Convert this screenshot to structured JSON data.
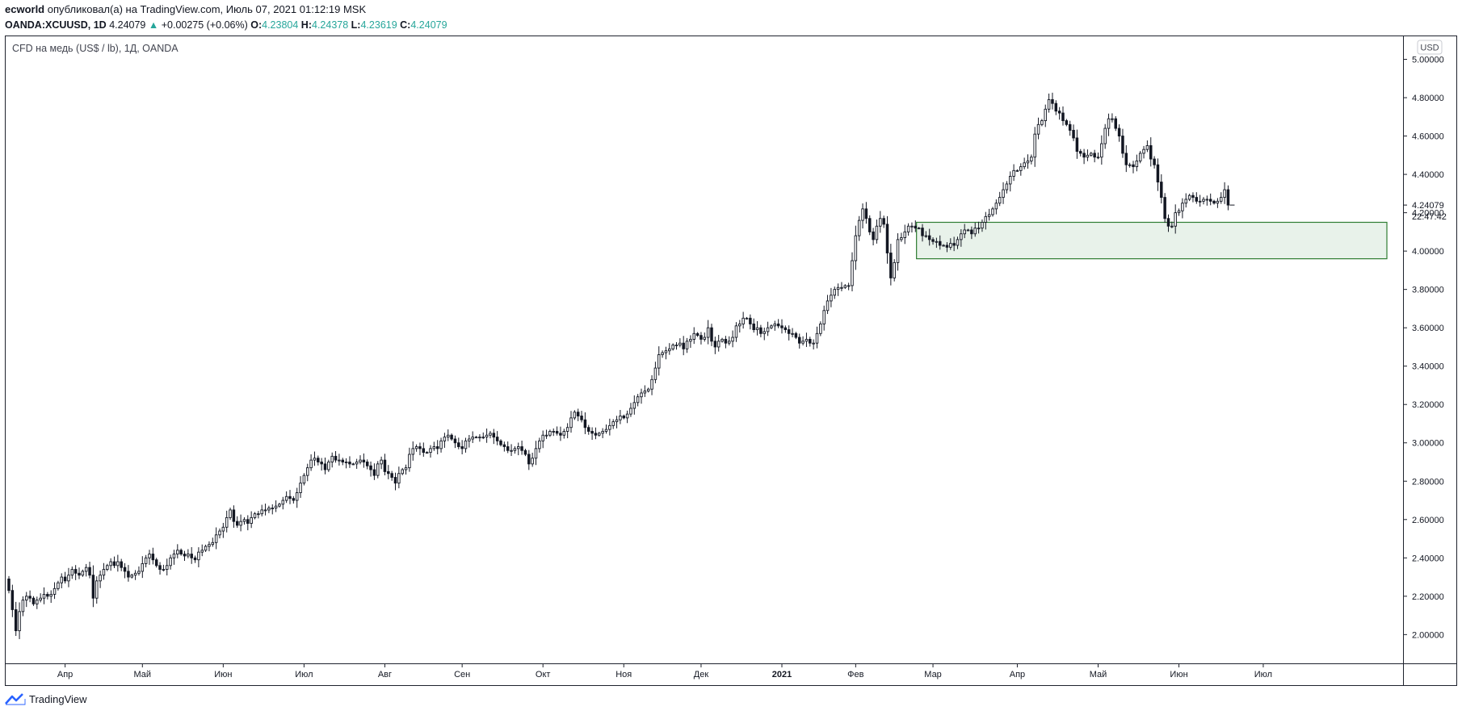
{
  "header": {
    "author": "ecworld",
    "published_text": "опубликовал(а) на TradingView.com, Июль 07, 2021 01:12:19 MSK",
    "symbol": "OANDA:XCUUSD, 1D",
    "last": "4.24079",
    "change_arrow": "▲",
    "change": "+0.00275 (+0.06%)",
    "o_label": "O:",
    "o_value": "4.23804",
    "h_label": "H:",
    "h_value": "4.24378",
    "l_label": "L:",
    "l_value": "4.23619",
    "c_label": "C:",
    "c_value": "4.24079"
  },
  "chart_title": "CFD на медь (US$ / lb), 1Д, OANDA",
  "currency_badge": "USD",
  "countdown": "22:47:42",
  "footer": {
    "brand": "TradingView",
    "logo_icon": "tradingview-logo-icon"
  },
  "colors": {
    "up_change": "#26a69a",
    "candle": "#131722",
    "box_fill": "#e8f2ea",
    "box_stroke": "#2e7d32"
  },
  "chart_data": {
    "type": "candlestick",
    "title": "CFD на медь (US$ / lb), 1Д, OANDA",
    "ylim": [
      1.85,
      5.12
    ],
    "y_ticks": [
      "2.00000",
      "2.20000",
      "2.40000",
      "2.60000",
      "2.80000",
      "3.00000",
      "3.20000",
      "3.40000",
      "3.60000",
      "3.80000",
      "4.00000",
      "4.20000",
      "4.40000",
      "4.60000",
      "4.80000",
      "5.00000"
    ],
    "x_labels": [
      "Апр",
      "Май",
      "Июн",
      "Июл",
      "Авг",
      "Сен",
      "Окт",
      "Ноя",
      "Дек",
      "2021",
      "Фев",
      "Мар",
      "Апр",
      "Май",
      "Июн",
      "Июл"
    ],
    "x_label_bar_index": [
      16,
      38,
      61,
      84,
      107,
      129,
      152,
      175,
      197,
      220,
      241,
      263,
      287,
      310,
      333,
      357
    ],
    "price_label": "4.24079",
    "zone": {
      "low": 3.96,
      "high": 4.15,
      "from_bar": 259,
      "label": ""
    },
    "closes": [
      2.23,
      2.13,
      2.02,
      2.12,
      2.18,
      2.2,
      2.19,
      2.16,
      2.18,
      2.19,
      2.21,
      2.2,
      2.21,
      2.24,
      2.27,
      2.3,
      2.28,
      2.31,
      2.34,
      2.32,
      2.31,
      2.33,
      2.35,
      2.31,
      2.19,
      2.28,
      2.31,
      2.34,
      2.36,
      2.38,
      2.36,
      2.38,
      2.35,
      2.33,
      2.3,
      2.31,
      2.32,
      2.33,
      2.37,
      2.4,
      2.42,
      2.39,
      2.36,
      2.34,
      2.34,
      2.36,
      2.4,
      2.42,
      2.44,
      2.42,
      2.41,
      2.42,
      2.4,
      2.39,
      2.43,
      2.44,
      2.46,
      2.47,
      2.48,
      2.52,
      2.54,
      2.56,
      2.61,
      2.65,
      2.59,
      2.57,
      2.59,
      2.6,
      2.58,
      2.61,
      2.63,
      2.63,
      2.65,
      2.65,
      2.66,
      2.66,
      2.67,
      2.68,
      2.7,
      2.72,
      2.71,
      2.7,
      2.74,
      2.79,
      2.83,
      2.87,
      2.91,
      2.92,
      2.9,
      2.89,
      2.86,
      2.9,
      2.93,
      2.91,
      2.91,
      2.9,
      2.9,
      2.89,
      2.89,
      2.9,
      2.91,
      2.9,
      2.88,
      2.86,
      2.83,
      2.89,
      2.91,
      2.85,
      2.84,
      2.82,
      2.79,
      2.84,
      2.86,
      2.87,
      2.94,
      2.97,
      2.98,
      2.97,
      2.95,
      2.95,
      2.97,
      2.98,
      2.97,
      3.01,
      3.03,
      3.04,
      3.02,
      3.0,
      2.98,
      2.97,
      3.01,
      3.02,
      3.03,
      3.03,
      3.03,
      3.03,
      3.04,
      3.05,
      3.03,
      3.01,
      2.99,
      2.98,
      2.96,
      2.96,
      2.97,
      2.98,
      2.96,
      2.94,
      2.89,
      2.92,
      2.97,
      3.01,
      3.04,
      3.04,
      3.06,
      3.06,
      3.05,
      3.04,
      3.06,
      3.08,
      3.13,
      3.16,
      3.14,
      3.12,
      3.08,
      3.06,
      3.05,
      3.04,
      3.05,
      3.06,
      3.07,
      3.09,
      3.11,
      3.12,
      3.14,
      3.13,
      3.15,
      3.18,
      3.21,
      3.24,
      3.26,
      3.27,
      3.28,
      3.33,
      3.39,
      3.46,
      3.47,
      3.48,
      3.49,
      3.51,
      3.51,
      3.52,
      3.49,
      3.53,
      3.54,
      3.57,
      3.56,
      3.54,
      3.55,
      3.6,
      3.53,
      3.5,
      3.53,
      3.54,
      3.52,
      3.53,
      3.55,
      3.61,
      3.62,
      3.65,
      3.65,
      3.62,
      3.59,
      3.6,
      3.57,
      3.58,
      3.6,
      3.61,
      3.62,
      3.61,
      3.6,
      3.59,
      3.57,
      3.57,
      3.55,
      3.52,
      3.53,
      3.54,
      3.52,
      3.52,
      3.57,
      3.62,
      3.69,
      3.74,
      3.77,
      3.8,
      3.81,
      3.81,
      3.82,
      3.82,
      3.95,
      4.08,
      4.16,
      4.22,
      4.17,
      4.1,
      4.06,
      4.13,
      4.17,
      4.14,
      3.99,
      3.86,
      3.94,
      4.06,
      4.07,
      4.1,
      4.13,
      4.13,
      4.12,
      4.12,
      4.08,
      4.08,
      4.06,
      4.05,
      4.05,
      4.03,
      4.03,
      4.02,
      4.04,
      4.03,
      4.06,
      4.09,
      4.11,
      4.11,
      4.09,
      4.12,
      4.12,
      4.15,
      4.18,
      4.19,
      4.22,
      4.25,
      4.28,
      4.32,
      4.35,
      4.39,
      4.42,
      4.42,
      4.44,
      4.46,
      4.47,
      4.49,
      4.61,
      4.66,
      4.68,
      4.74,
      4.79,
      4.77,
      4.73,
      4.72,
      4.68,
      4.66,
      4.63,
      4.59,
      4.52,
      4.51,
      4.49,
      4.5,
      4.51,
      4.49,
      4.49,
      4.56,
      4.64,
      4.69,
      4.69,
      4.64,
      4.6,
      4.51,
      4.45,
      4.45,
      4.44,
      4.47,
      4.51,
      4.53,
      4.55,
      4.48,
      4.45,
      4.36,
      4.28,
      4.17,
      4.13,
      4.13,
      4.2,
      4.21,
      4.25,
      4.27,
      4.29,
      4.28,
      4.26,
      4.26,
      4.27,
      4.27,
      4.26,
      4.25,
      4.26,
      4.28,
      4.32,
      4.24
    ]
  }
}
